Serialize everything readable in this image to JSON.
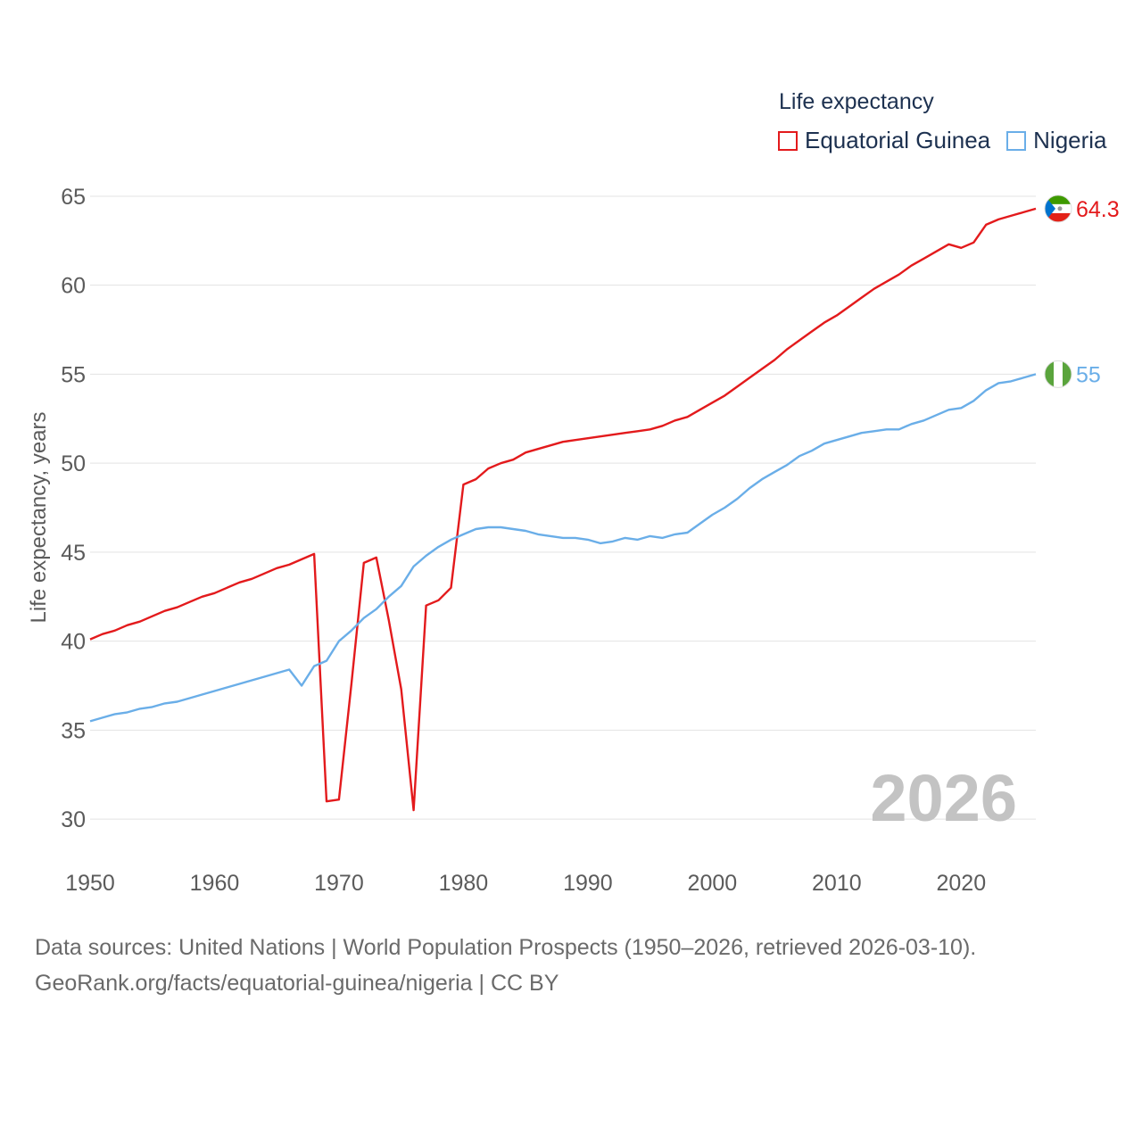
{
  "legend": {
    "title": "Life expectancy",
    "items": [
      {
        "name": "Equatorial Guinea",
        "color": "#e31a1c"
      },
      {
        "name": "Nigeria",
        "color": "#6aaee8"
      }
    ]
  },
  "year_watermark": "2026",
  "sources": {
    "line1": "Data sources: United Nations | World Population Prospects (1950–2026, retrieved 2026-03-10).",
    "line2": "GeoRank.org/facts/equatorial-guinea/nigeria | CC BY"
  },
  "chart_data": {
    "type": "line",
    "title": "Life expectancy",
    "xlabel": "",
    "ylabel": "Life expectancy, years",
    "xlim": [
      1950,
      2026
    ],
    "ylim": [
      28,
      66
    ],
    "xticks": [
      1950,
      1960,
      1970,
      1980,
      1990,
      2000,
      2010,
      2020
    ],
    "yticks": [
      30,
      35,
      40,
      45,
      50,
      55,
      60,
      65
    ],
    "grid": true,
    "legend_position": "top-right",
    "x": [
      1950,
      1951,
      1952,
      1953,
      1954,
      1955,
      1956,
      1957,
      1958,
      1959,
      1960,
      1961,
      1962,
      1963,
      1964,
      1965,
      1966,
      1967,
      1968,
      1969,
      1970,
      1971,
      1972,
      1973,
      1974,
      1975,
      1976,
      1977,
      1978,
      1979,
      1980,
      1981,
      1982,
      1983,
      1984,
      1985,
      1986,
      1987,
      1988,
      1989,
      1990,
      1991,
      1992,
      1993,
      1994,
      1995,
      1996,
      1997,
      1998,
      1999,
      2000,
      2001,
      2002,
      2003,
      2004,
      2005,
      2006,
      2007,
      2008,
      2009,
      2010,
      2011,
      2012,
      2013,
      2014,
      2015,
      2016,
      2017,
      2018,
      2019,
      2020,
      2021,
      2022,
      2023,
      2024,
      2025,
      2026
    ],
    "series": [
      {
        "name": "Equatorial Guinea",
        "color": "#e31a1c",
        "end_label": "64.3",
        "values": [
          40.1,
          40.4,
          40.6,
          40.9,
          41.1,
          41.4,
          41.7,
          41.9,
          42.2,
          42.5,
          42.7,
          43.0,
          43.3,
          43.5,
          43.8,
          44.1,
          44.3,
          44.6,
          44.9,
          31.0,
          31.1,
          37.6,
          44.4,
          44.7,
          41.2,
          37.3,
          30.5,
          42.0,
          42.3,
          43.0,
          48.8,
          49.1,
          49.7,
          50.0,
          50.2,
          50.6,
          50.8,
          51.0,
          51.2,
          51.3,
          51.4,
          51.5,
          51.6,
          51.7,
          51.8,
          51.9,
          52.1,
          52.4,
          52.6,
          53.0,
          53.4,
          53.8,
          54.3,
          54.8,
          55.3,
          55.8,
          56.4,
          56.9,
          57.4,
          57.9,
          58.3,
          58.8,
          59.3,
          59.8,
          60.2,
          60.6,
          61.1,
          61.5,
          61.9,
          62.3,
          62.1,
          62.4,
          63.4,
          63.7,
          63.9,
          64.1,
          64.3
        ]
      },
      {
        "name": "Nigeria",
        "color": "#6aaee8",
        "end_label": "55",
        "values": [
          35.5,
          35.7,
          35.9,
          36.0,
          36.2,
          36.3,
          36.5,
          36.6,
          36.8,
          37.0,
          37.2,
          37.4,
          37.6,
          37.8,
          38.0,
          38.2,
          38.4,
          37.5,
          38.6,
          38.9,
          40.0,
          40.6,
          41.3,
          41.8,
          42.5,
          43.1,
          44.2,
          44.8,
          45.3,
          45.7,
          46.0,
          46.3,
          46.4,
          46.4,
          46.3,
          46.2,
          46.0,
          45.9,
          45.8,
          45.8,
          45.7,
          45.5,
          45.6,
          45.8,
          45.7,
          45.9,
          45.8,
          46.0,
          46.1,
          46.6,
          47.1,
          47.5,
          48.0,
          48.6,
          49.1,
          49.5,
          49.9,
          50.4,
          50.7,
          51.1,
          51.3,
          51.5,
          51.7,
          51.8,
          51.9,
          51.9,
          52.2,
          52.4,
          52.7,
          53.0,
          53.1,
          53.5,
          54.1,
          54.5,
          54.6,
          54.8,
          55.0
        ]
      }
    ]
  }
}
